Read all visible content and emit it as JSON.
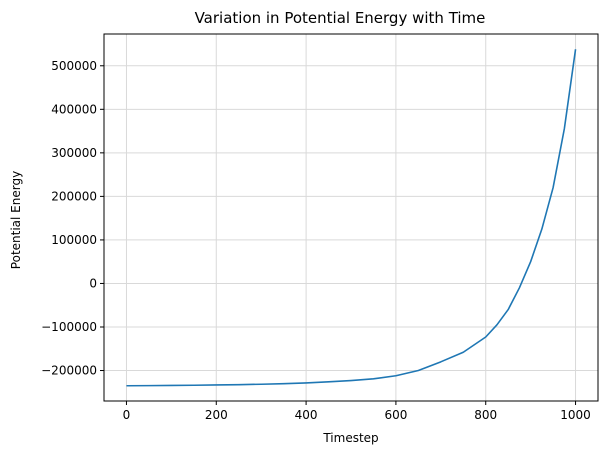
{
  "chart_data": {
    "type": "line",
    "title": "Variation in Potential Energy with Time",
    "xlabel": "Timestep",
    "ylabel": "Potential Energy",
    "xlim": [
      -50,
      1050
    ],
    "ylim": [
      -270000,
      573000
    ],
    "xticks": [
      0,
      200,
      400,
      600,
      800,
      1000
    ],
    "xtick_labels": [
      "0",
      "200",
      "400",
      "600",
      "800",
      "1000"
    ],
    "yticks": [
      -200000,
      -100000,
      0,
      100000,
      200000,
      300000,
      400000,
      500000
    ],
    "ytick_labels": [
      "−200000",
      "−100000",
      "0",
      "100000",
      "200000",
      "300000",
      "400000",
      "500000"
    ],
    "grid": true,
    "line_color": "#1f77b4",
    "grid_color": "#d9d9d9",
    "series": [
      {
        "x": [
          0,
          50,
          100,
          150,
          200,
          250,
          300,
          350,
          400,
          450,
          500,
          550,
          600,
          650,
          700,
          750,
          800,
          825,
          850,
          875,
          900,
          925,
          950,
          975,
          1000
        ],
        "values": [
          -235000,
          -234700,
          -234300,
          -233800,
          -233200,
          -232500,
          -231500,
          -230200,
          -228500,
          -226000,
          -223000,
          -219000,
          -212000,
          -200000,
          -180000,
          -158000,
          -123000,
          -95000,
          -60000,
          -10000,
          50000,
          125000,
          220000,
          355000,
          538000
        ]
      }
    ]
  }
}
